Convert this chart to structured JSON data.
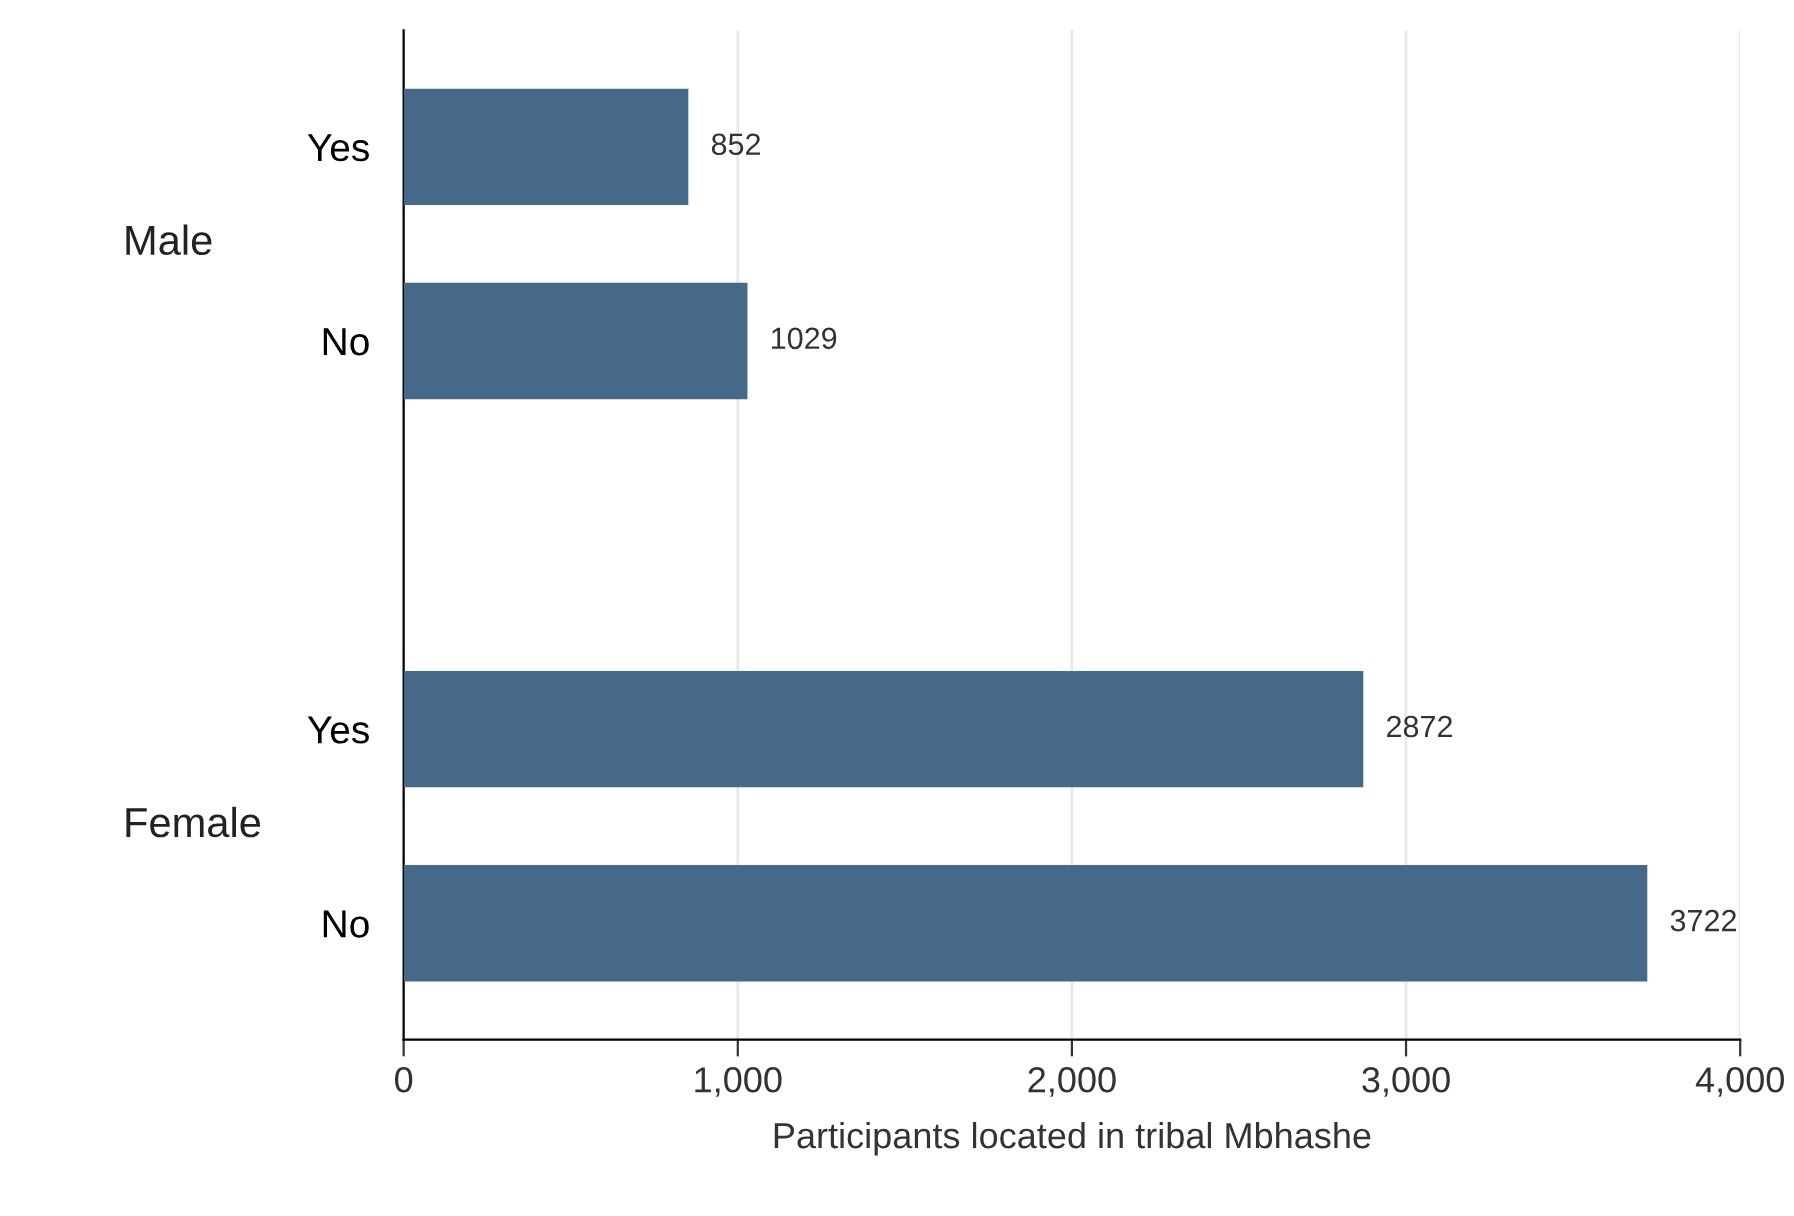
{
  "chart_data": {
    "type": "bar",
    "orientation": "horizontal",
    "categories": [
      "Yes",
      "No",
      null,
      "Yes",
      "No"
    ],
    "values": [
      852,
      1029,
      null,
      2872,
      3722
    ],
    "color": "#46698a",
    "data_labels": true,
    "xlabel": "Participants located in tribal Mbhashe",
    "annotations": [
      "Male",
      "Female"
    ],
    "xlim": [
      0,
      4000
    ],
    "xticks": [
      {
        "value": 0,
        "label": "0"
      },
      {
        "value": 1000,
        "label": "1,000"
      },
      {
        "value": 2000,
        "label": "2,000"
      },
      {
        "value": 3000,
        "label": "3,000"
      },
      {
        "value": 4000,
        "label": "4,000"
      }
    ],
    "grid": "x"
  }
}
